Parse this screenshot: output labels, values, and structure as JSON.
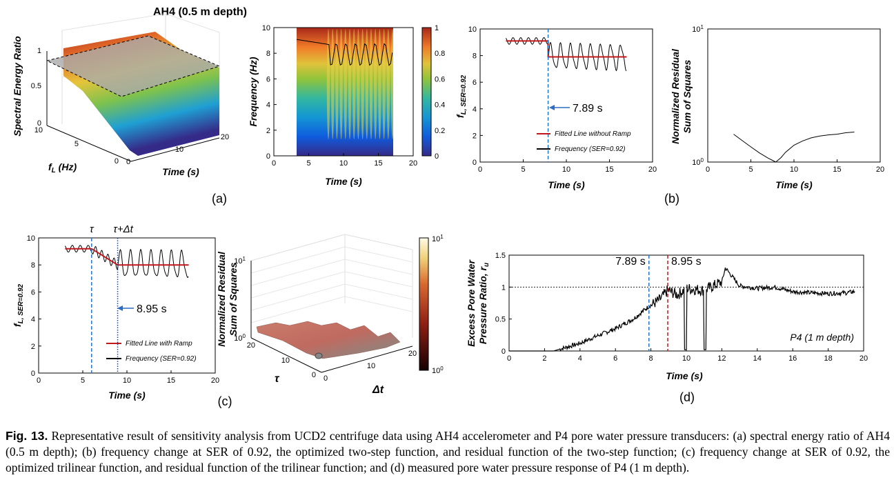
{
  "figure": {
    "panel_labels": [
      "(a)",
      "(b)",
      "(c)",
      "(d)"
    ],
    "caption_label": "Fig. 13.",
    "caption_text": " Representative result of sensitivity analysis from UCD2 centrifuge data using AH4 accelerometer and P4 pore water pressure transducers: (a) spectral energy ratio of AH4 (0.5 m depth); (b) frequency change at SER of 0.92, the optimized two-step function, and residual function of the two-step function; (c) frequency change at SER of 0.92, the optimized trilinear function, and residual function of the trilinear function; and (d) measured pore water pressure response of P4 (1 m depth)."
  },
  "chart_data": [
    {
      "id": "a-surface",
      "type": "surface3d",
      "title": "AH4 (0.5 m depth)",
      "zlabel": "Spectral Energy Ratio",
      "ylabel": "f_L (Hz)",
      "xlabel": "Time (s)",
      "z_ticks": [
        "1",
        "0.5",
        "0"
      ],
      "y_ticks": [
        "10",
        "5",
        "0"
      ],
      "x_ticks": [
        "0",
        "10",
        "20"
      ],
      "threshold_plane": 0.92
    },
    {
      "id": "a-heatmap",
      "type": "heatmap",
      "ylabel": "Frequency (Hz)",
      "xlabel": "Time (s)",
      "x": [
        3,
        17
      ],
      "xlim": [
        0,
        20
      ],
      "ylim": [
        0,
        10
      ],
      "x_ticks": [
        "0",
        "5",
        "10",
        "15",
        "20"
      ],
      "y_ticks": [
        "0",
        "2",
        "4",
        "6",
        "8",
        "10"
      ],
      "colorbar_ticks": [
        "0",
        "0.2",
        "0.4",
        "0.6",
        "0.8",
        "1"
      ],
      "colorbar_range": [
        0,
        1
      ]
    },
    {
      "id": "b-step",
      "type": "line",
      "ylabel": "f_L, SER=0.92",
      "xlabel": "Time (s)",
      "xlim": [
        0,
        20
      ],
      "ylim": [
        0,
        10
      ],
      "x_ticks": [
        "0",
        "5",
        "10",
        "15",
        "20"
      ],
      "y_ticks": [
        "0",
        "2",
        "4",
        "6",
        "8",
        "10"
      ],
      "series": [
        {
          "name": "Fitted Line without Ramp",
          "x": [
            3,
            7.89,
            7.89,
            17
          ],
          "y": [
            9.1,
            9.1,
            7.9,
            7.9
          ]
        },
        {
          "name": "Frequency (SER=0.92)"
        }
      ],
      "marker_x": 7.89,
      "annotation": "7.89 s"
    },
    {
      "id": "b-residual",
      "type": "line",
      "ylabel": "Normalized Residual Sum of Squares",
      "xlabel": "Time (s)",
      "yscale": "log",
      "xlim": [
        0,
        20
      ],
      "x_ticks": [
        "0",
        "5",
        "10",
        "15",
        "20"
      ],
      "x": [
        3,
        4,
        5,
        6,
        7,
        7.5,
        7.89,
        8.5,
        9,
        10,
        11,
        12,
        13,
        14,
        15,
        16,
        17
      ],
      "y": [
        1.62,
        1.45,
        1.3,
        1.17,
        1.07,
        1.03,
        1.0,
        1.08,
        1.18,
        1.34,
        1.44,
        1.52,
        1.57,
        1.6,
        1.62,
        1.66,
        1.68
      ]
    },
    {
      "id": "c-ramp",
      "type": "line",
      "ylabel": "f_L, SER=0.92",
      "xlabel": "Time (s)",
      "xlim": [
        0,
        20
      ],
      "ylim": [
        0,
        10
      ],
      "x_ticks": [
        "0",
        "5",
        "10",
        "15",
        "20"
      ],
      "y_ticks": [
        "0",
        "2",
        "4",
        "6",
        "8",
        "10"
      ],
      "series": [
        {
          "name": "Fitted Line with Ramp",
          "x": [
            3,
            6,
            8.95,
            17
          ],
          "y": [
            9.2,
            9.2,
            8.0,
            8.0
          ]
        },
        {
          "name": "Frequency (SER=0.92)"
        }
      ],
      "tau": 6,
      "tau_plus_dt": 8.95,
      "label_tau": "τ",
      "label_tau_dt": "τ+Δt",
      "annotation": "8.95 s"
    },
    {
      "id": "c-surface",
      "type": "surface3d",
      "zlabel": "Normalized Residual Sum of Squares",
      "ylabel": "τ",
      "xlabel": "Δt",
      "z_ticks": [
        "10¹",
        "10⁰"
      ],
      "y_ticks": [
        "20",
        "10",
        "0"
      ],
      "x_ticks": [
        "0",
        "10",
        "20"
      ],
      "colorbar_ticks": [
        "10¹",
        "10⁰"
      ]
    },
    {
      "id": "d-pore",
      "type": "line",
      "ylabel": "Excess Pore Water Pressure Ratio, r_u",
      "xlabel": "Time (s)",
      "xlim": [
        0,
        20
      ],
      "ylim": [
        0,
        1.5
      ],
      "x_ticks": [
        "0",
        "2",
        "4",
        "6",
        "8",
        "10",
        "12",
        "14",
        "16",
        "18",
        "20"
      ],
      "y_ticks": [
        "0",
        "0.5",
        "1",
        "1.5"
      ],
      "reference_line": 1,
      "markers": [
        {
          "x": 7.89,
          "label": "7.89 s"
        },
        {
          "x": 8.95,
          "label": "8.95 s"
        }
      ],
      "annotation": "P4 (1 m depth)",
      "x": [
        0,
        2.5,
        3,
        4,
        5,
        6,
        7,
        7.89,
        8.5,
        8.95,
        9.5,
        10,
        11,
        12,
        12.2,
        13,
        14,
        15,
        16,
        17,
        18,
        19,
        19.5
      ],
      "y": [
        0,
        0,
        0.04,
        0.12,
        0.24,
        0.35,
        0.5,
        0.7,
        0.8,
        0.95,
        0.88,
        0.98,
        0.95,
        1.08,
        1.3,
        1.02,
        0.98,
        1.0,
        0.93,
        0.91,
        0.9,
        0.91,
        0.93
      ]
    }
  ]
}
